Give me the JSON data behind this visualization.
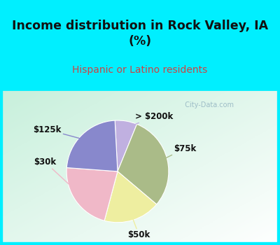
{
  "title": "Income distribution in Rock Valley, IA\n(%)",
  "subtitle": "Hispanic or Latino residents",
  "title_color": "#111111",
  "subtitle_color": "#cc4444",
  "header_bg": "#00efff",
  "watermark": "  City-Data.com",
  "slices": [
    {
      "label": "> $200k",
      "value": 7,
      "color": "#c0b0e0"
    },
    {
      "label": "$75k",
      "value": 30,
      "color": "#aabb88"
    },
    {
      "label": "$50k",
      "value": 18,
      "color": "#eeeea0"
    },
    {
      "label": "$30k",
      "value": 22,
      "color": "#f0b8c8"
    },
    {
      "label": "$125k",
      "value": 23,
      "color": "#8888cc"
    }
  ],
  "chart_bg_colors": [
    "#c8e8d8",
    "#e8f8ee",
    "#f0fff8"
  ],
  "border_color": "#00efff",
  "border_width": 6
}
